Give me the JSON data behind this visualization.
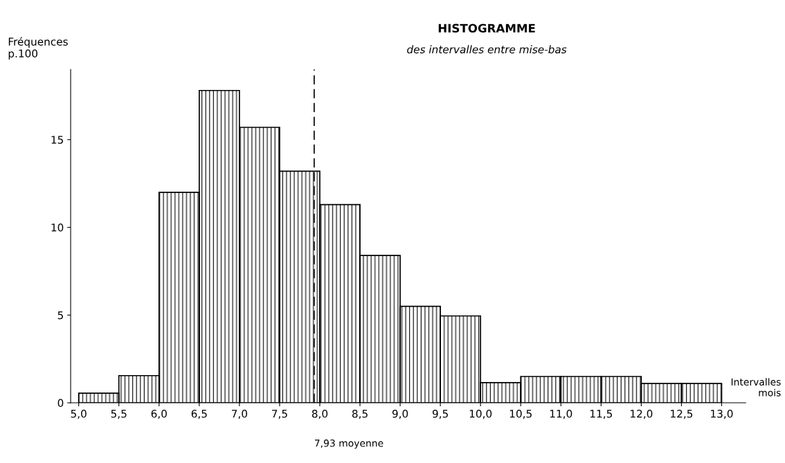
{
  "chart_data": {
    "type": "histogram",
    "title": "HISTOGRAMME",
    "subtitle": "des intervalles entre mise-bas",
    "xlabel": "Intervalles\nmois",
    "ylabel": "Fréquences\np.100",
    "bins": [
      5.0,
      5.5,
      6.0,
      6.5,
      7.0,
      7.5,
      8.0,
      8.5,
      9.0,
      9.5,
      10.0,
      10.5,
      11.0,
      11.5,
      12.0,
      12.5,
      13.0
    ],
    "values": [
      0.55,
      1.55,
      12.0,
      17.8,
      15.7,
      13.2,
      11.3,
      8.4,
      5.5,
      4.95,
      1.15,
      1.5,
      1.5,
      1.5,
      1.1,
      1.1
    ],
    "color": "#000000",
    "xlim": [
      4.9,
      13.3
    ],
    "ylim": [
      0,
      19
    ],
    "xticks": [
      {
        "value": 5.0,
        "label": "5,0"
      },
      {
        "value": 5.5,
        "label": "5,5"
      },
      {
        "value": 6.0,
        "label": "6,0"
      },
      {
        "value": 6.5,
        "label": "6,5"
      },
      {
        "value": 7.0,
        "label": "7,0"
      },
      {
        "value": 7.5,
        "label": "7,5"
      },
      {
        "value": 8.0,
        "label": "8,0"
      },
      {
        "value": 8.5,
        "label": "8,5"
      },
      {
        "value": 9.0,
        "label": "9,0"
      },
      {
        "value": 9.5,
        "label": "9,5"
      },
      {
        "value": 10.0,
        "label": "10,0"
      },
      {
        "value": 10.5,
        "label": "10,5"
      },
      {
        "value": 11.0,
        "label": "11,0"
      },
      {
        "value": 11.5,
        "label": "11,5"
      },
      {
        "value": 12.0,
        "label": "12,0"
      },
      {
        "value": 12.5,
        "label": "12,5"
      },
      {
        "value": 13.0,
        "label": "13,0"
      }
    ],
    "yticks": [
      0,
      5,
      10,
      15
    ],
    "ref_lines": [
      {
        "axis": "x",
        "value": 7.93,
        "label": "7,93 moyenne",
        "color": "#000000",
        "line_style": "dashed"
      }
    ]
  }
}
